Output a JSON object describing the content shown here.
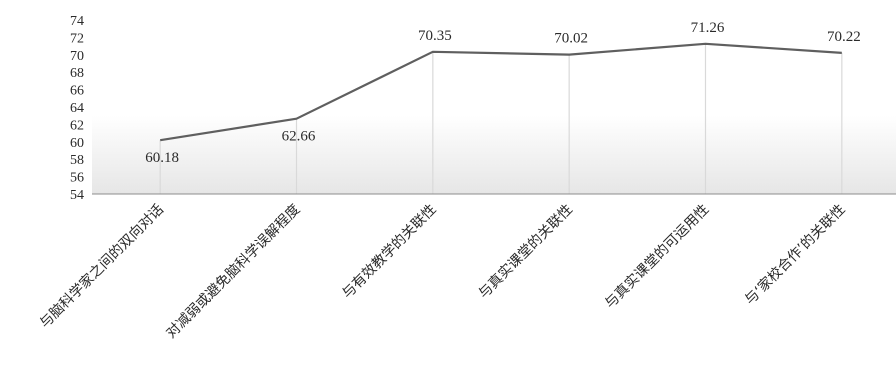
{
  "chart_data": {
    "type": "line",
    "categories": [
      "与脑科学家之间的双向对话",
      "对减弱或避免脑科学误解程度",
      "与有效教学的关联性",
      "与真实课堂的关联性",
      "与真实课堂的可运用性",
      "与‘家校合作’的关联性"
    ],
    "values": [
      60.18,
      62.66,
      70.35,
      70.02,
      71.26,
      70.22
    ],
    "data_labels": [
      "60.18",
      "62.66",
      "70.35",
      "70.02",
      "71.26",
      "70.22"
    ],
    "ylim": [
      54,
      74
    ],
    "yticks": [
      54,
      56,
      58,
      60,
      62,
      64,
      66,
      68,
      70,
      72,
      74
    ],
    "title": "",
    "xlabel": "",
    "ylabel": "",
    "grid": "vertical drop lines",
    "legend": "none",
    "colors": {
      "line": "#5f5f5f",
      "droplines": "#d9d9d9",
      "axis": "#8c8c8c",
      "band_top": "#ffffff",
      "band_bottom": "#e6e6e6"
    }
  }
}
